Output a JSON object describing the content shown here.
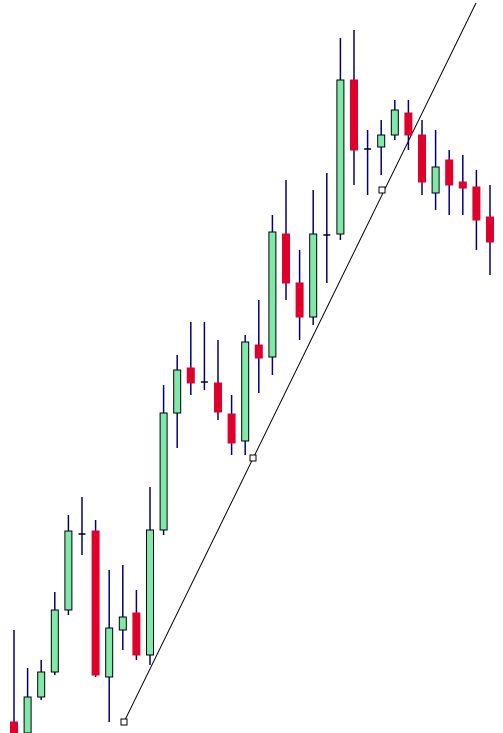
{
  "chart_data": {
    "type": "candlestick",
    "ylim": [
      0,
      733
    ],
    "up_color": "#80e8a8",
    "down_color": "#e0002c",
    "wick_color": "#000080",
    "doji_color": "#000000",
    "open": [
      11,
      0,
      36,
      61,
      123,
      199,
      202,
      56,
      103,
      120,
      78,
      203,
      320,
      365,
      351,
      350,
      319,
      292,
      388,
      376,
      499,
      450,
      416,
      498,
      499,
      653,
      584,
      586,
      598,
      620,
      598,
      540,
      573,
      551,
      546,
      516
    ],
    "high": [
      103,
      65,
      73,
      141,
      218,
      236,
      213,
      163,
      168,
      143,
      246,
      348,
      378,
      411,
      411,
      393,
      338,
      398,
      433,
      518,
      553,
      483,
      543,
      560,
      695,
      703,
      603,
      613,
      633,
      633,
      613,
      603,
      583,
      578,
      563,
      548
    ],
    "low": [
      0,
      0,
      33,
      58,
      118,
      178,
      56,
      11,
      83,
      73,
      68,
      198,
      285,
      338,
      343,
      313,
      278,
      278,
      340,
      358,
      433,
      393,
      408,
      450,
      493,
      548,
      538,
      558,
      593,
      583,
      538,
      523,
      518,
      518,
      483,
      458
    ],
    "close": [
      0,
      36,
      61,
      123,
      202,
      199,
      58,
      105,
      116,
      78,
      203,
      320,
      363,
      350,
      351,
      321,
      290,
      391,
      375,
      501,
      450,
      416,
      499,
      498,
      653,
      583,
      584,
      598,
      623,
      598,
      551,
      566,
      548,
      545,
      513,
      491
    ]
  }
}
